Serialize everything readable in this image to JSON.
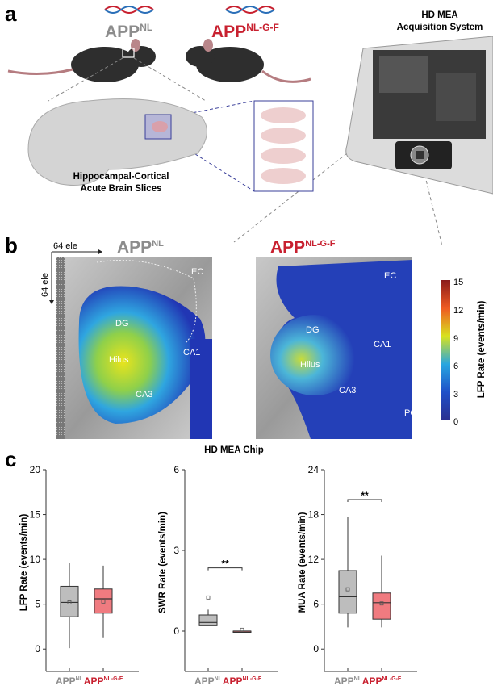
{
  "panels": {
    "a": {
      "letter": "a",
      "genotype_nl": {
        "base": "APP",
        "sup": "NL"
      },
      "genotype_nlgf": {
        "base": "APP",
        "sup": "NL-G-F"
      },
      "slices_caption_line1": "Hippocampal-Cortical",
      "slices_caption_line2": "Acute Brain Slices",
      "system_title_line1": "HD MEA",
      "system_title_line2": "Acquisition System"
    },
    "b": {
      "letter": "b",
      "axis_x_label": "64 ele",
      "axis_y_label": "64 ele",
      "map_nl_title": {
        "base": "APP",
        "sup": "NL"
      },
      "map_nlgf_title": {
        "base": "APP",
        "sup": "NL-G-F"
      },
      "regions": [
        "EC",
        "DG",
        "Hilus",
        "CA1",
        "CA3",
        "PC"
      ],
      "colorbar_label": "LFP Rate (events/min)",
      "colorbar_ticks": [
        "15",
        "12",
        "9",
        "6",
        "3",
        "0"
      ],
      "chip_caption": "HD MEA Chip"
    },
    "c": {
      "letter": "c"
    }
  },
  "colors": {
    "nl": "#8c8c8c",
    "nlgf": "#c8202f",
    "box_nl": "#bdbdbd",
    "box_nlgf": "#f07b80"
  },
  "chart_data": [
    {
      "type": "box",
      "ylabel": "LFP Rate (events/min)",
      "ylim": [
        -2.5,
        20
      ],
      "yticks": [
        0,
        5,
        10,
        15,
        20
      ],
      "categories": [
        {
          "base": "APP",
          "sup": "NL"
        },
        {
          "base": "APP",
          "sup": "NL-G-F"
        }
      ],
      "series": [
        {
          "name": "APPNL",
          "min": 0.1,
          "q1": 3.6,
          "median": 5.2,
          "q3": 7.0,
          "max": 9.6,
          "mean": 5.2
        },
        {
          "name": "APPNL-G-F",
          "min": 1.3,
          "q1": 4.0,
          "median": 5.6,
          "q3": 6.7,
          "max": 9.3,
          "mean": 5.3
        }
      ],
      "significance": ""
    },
    {
      "type": "box",
      "ylabel": "SWR Rate (events/min)",
      "ylim": [
        -1.5,
        6
      ],
      "yticks": [
        0,
        3,
        6
      ],
      "categories": [
        {
          "base": "APP",
          "sup": "NL"
        },
        {
          "base": "APP",
          "sup": "NL-G-F"
        }
      ],
      "series": [
        {
          "name": "APPNL",
          "min": 0.2,
          "q1": 0.2,
          "median": 0.32,
          "q3": 0.6,
          "max": 0.8,
          "mean": 1.25
        },
        {
          "name": "APPNL-G-F",
          "min": 0,
          "q1": 0,
          "median": 0,
          "q3": 0,
          "max": 0,
          "mean": 0.05
        }
      ],
      "significance": "**"
    },
    {
      "type": "box",
      "ylabel": "MUA Rate (events/min)",
      "ylim": [
        -3,
        24
      ],
      "yticks": [
        0,
        6,
        12,
        18,
        24
      ],
      "categories": [
        {
          "base": "APP",
          "sup": "NL"
        },
        {
          "base": "APP",
          "sup": "NL-G-F"
        }
      ],
      "series": [
        {
          "name": "APPNL",
          "min": 2.9,
          "q1": 4.8,
          "median": 7.0,
          "q3": 10.5,
          "max": 17.7,
          "mean": 8.0
        },
        {
          "name": "APPNL-G-F",
          "min": 2.9,
          "q1": 4.0,
          "median": 6.2,
          "q3": 7.5,
          "max": 12.5,
          "mean": 6.1
        }
      ],
      "significance": "**"
    }
  ]
}
